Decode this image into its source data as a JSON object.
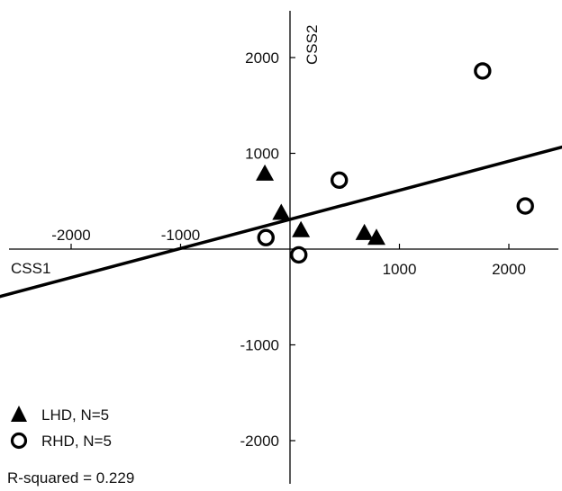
{
  "chart_data": {
    "type": "scatter",
    "xlabel": "CSS1",
    "ylabel": "CSS2",
    "xlim": [
      -2700,
      2700
    ],
    "ylim": [
      -2500,
      2500
    ],
    "xticks": [
      {
        "value": -2000,
        "label": "-2000"
      },
      {
        "value": -1000,
        "label": "-1000"
      },
      {
        "value": 1000,
        "label": "1000"
      },
      {
        "value": 2000,
        "label": "2000"
      }
    ],
    "yticks": [
      {
        "value": 2000,
        "label": "2000"
      },
      {
        "value": 1000,
        "label": "1000"
      },
      {
        "value": -1000,
        "label": "-1000"
      },
      {
        "value": -2000,
        "label": "-2000"
      }
    ],
    "series": [
      {
        "name": "LHD, N=5",
        "marker": "triangle",
        "color": "#000000",
        "points": [
          {
            "x": -230,
            "y": 790
          },
          {
            "x": -80,
            "y": 380
          },
          {
            "x": 100,
            "y": 200
          },
          {
            "x": 680,
            "y": 170
          },
          {
            "x": 790,
            "y": 120
          }
        ]
      },
      {
        "name": "RHD, N=5",
        "marker": "circle-open",
        "color": "#000000",
        "points": [
          {
            "x": -220,
            "y": 120
          },
          {
            "x": 80,
            "y": -60
          },
          {
            "x": 450,
            "y": 720
          },
          {
            "x": 1760,
            "y": 1860
          },
          {
            "x": 2150,
            "y": 450
          }
        ]
      }
    ],
    "regression_line": {
      "x": [
        -2800,
        2700
      ],
      "y": [
        -540,
        1130
      ]
    },
    "annotation": "R-squared = 0.229",
    "legend_position": "bottom-left",
    "grid": false
  },
  "colors": {
    "ink": "#000000",
    "background": "#ffffff"
  }
}
